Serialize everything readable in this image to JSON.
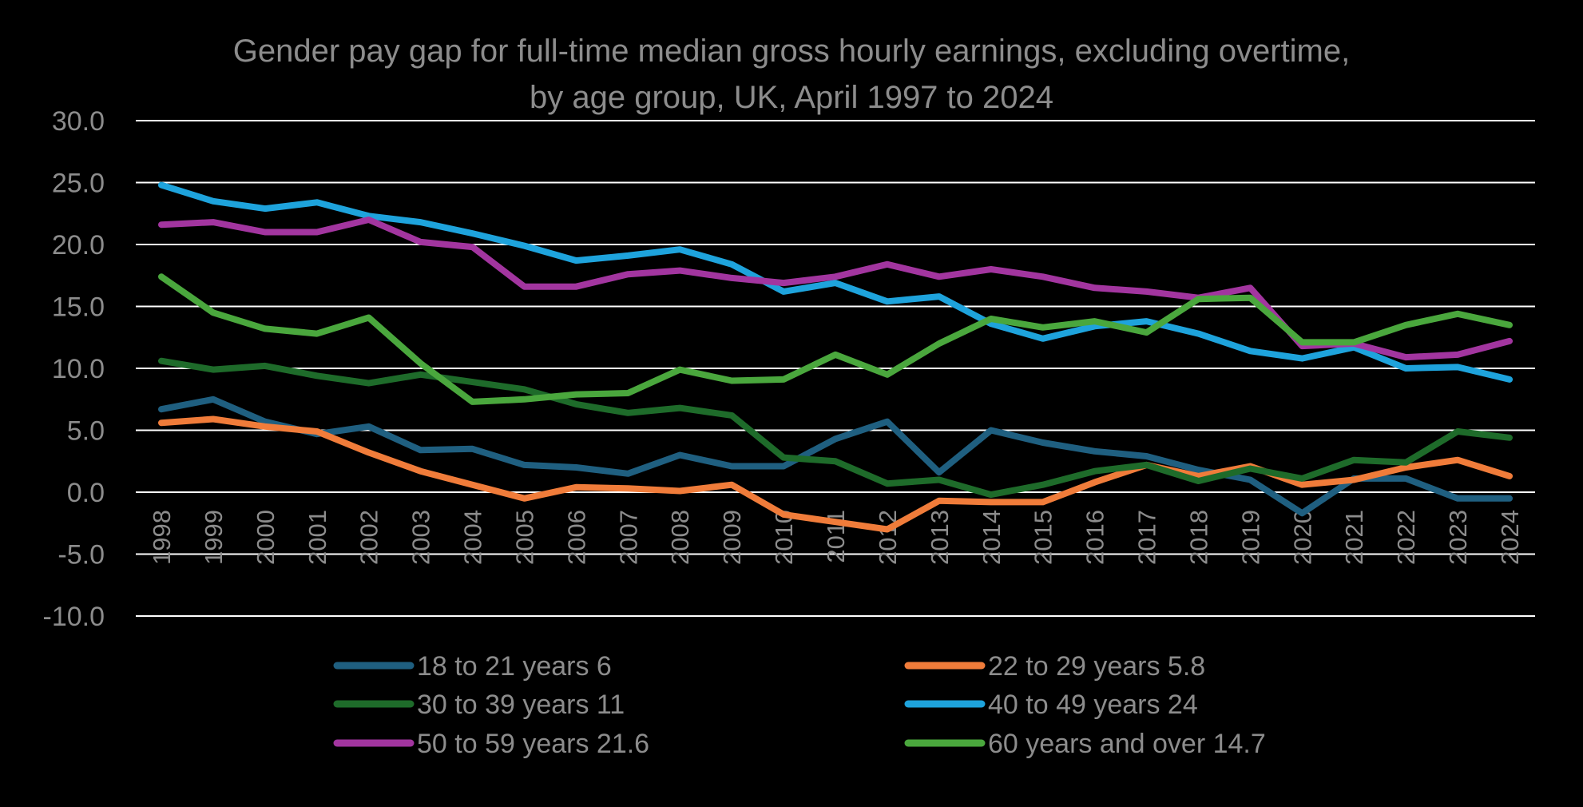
{
  "chart_data": {
    "type": "line",
    "title_lines": [
      "Gender pay gap for full-time median gross hourly earnings, excluding overtime,",
      "by age group, UK, April 1997 to 2024"
    ],
    "xlabel": "",
    "ylabel": "",
    "ylim": [
      -10,
      30
    ],
    "y_ticks": [
      "30.0",
      "25.0",
      "20.0",
      "15.0",
      "10.0",
      "5.0",
      "0.0",
      "-5.0",
      "-10.0"
    ],
    "grid": true,
    "legend_position": "bottom",
    "categories": [
      "1998",
      "1999",
      "2000",
      "2001",
      "2002",
      "2003",
      "2004",
      "2005",
      "2006",
      "2007",
      "2008",
      "2009",
      "2010",
      "2011",
      "2012",
      "2013",
      "2014",
      "2015",
      "2016",
      "2017",
      "2018",
      "2019",
      "2020",
      "2021",
      "2022",
      "2023",
      "2024"
    ],
    "series": [
      {
        "name": "18 to 21 years  6",
        "color": "#1f5f80",
        "values": [
          6.7,
          7.5,
          5.7,
          4.7,
          5.3,
          3.4,
          3.5,
          2.2,
          2.0,
          1.5,
          3.0,
          2.1,
          2.1,
          4.3,
          5.7,
          1.6,
          5.0,
          4.0,
          3.3,
          2.9,
          1.8,
          1.0,
          -1.7,
          1.1,
          1.1,
          -0.5,
          -0.5
        ]
      },
      {
        "name": "22 to 29 years 5.8",
        "color": "#f07c3a",
        "values": [
          5.6,
          5.9,
          5.3,
          4.9,
          3.2,
          1.7,
          0.6,
          -0.5,
          0.4,
          0.3,
          0.1,
          0.6,
          -1.8,
          -2.4,
          -3.0,
          -0.7,
          -0.8,
          -0.8,
          0.8,
          2.2,
          1.3,
          2.1,
          0.6,
          1.0,
          2.0,
          2.6,
          1.3
        ]
      },
      {
        "name": "30 to 39 years 11",
        "color": "#1e6b2a",
        "values": [
          10.6,
          9.9,
          10.2,
          9.4,
          8.8,
          9.5,
          8.9,
          8.3,
          7.1,
          6.4,
          6.8,
          6.2,
          2.8,
          2.5,
          0.7,
          1.0,
          -0.2,
          0.6,
          1.7,
          2.2,
          0.9,
          1.9,
          1.1,
          2.6,
          2.4,
          4.9,
          4.4
        ]
      },
      {
        "name": "40 to 49 years 24",
        "color": "#1ea3dc",
        "values": [
          24.8,
          23.5,
          22.9,
          23.4,
          22.3,
          21.8,
          20.9,
          19.9,
          18.7,
          19.1,
          19.6,
          18.4,
          16.2,
          16.9,
          15.4,
          15.8,
          13.6,
          12.4,
          13.4,
          13.8,
          12.8,
          11.4,
          10.8,
          11.7,
          10.0,
          10.1,
          9.1
        ]
      },
      {
        "name": "50 to 59 years 21.6",
        "color": "#a2359f",
        "values": [
          21.6,
          21.8,
          21.0,
          21.0,
          22.0,
          20.2,
          19.8,
          16.6,
          16.6,
          17.6,
          17.9,
          17.3,
          16.9,
          17.4,
          18.4,
          17.4,
          18.0,
          17.4,
          16.5,
          16.2,
          15.7,
          16.5,
          11.8,
          12.0,
          10.9,
          11.1,
          12.2
        ]
      },
      {
        "name": "60 years and over 14.7",
        "color": "#4aa73d",
        "values": [
          17.4,
          14.5,
          13.2,
          12.8,
          14.1,
          10.4,
          7.3,
          7.5,
          7.9,
          8.0,
          9.9,
          9.0,
          9.1,
          11.1,
          9.5,
          12.0,
          14.0,
          13.3,
          13.8,
          12.9,
          15.6,
          15.7,
          12.1,
          12.1,
          13.5,
          14.4,
          13.5
        ]
      }
    ]
  }
}
